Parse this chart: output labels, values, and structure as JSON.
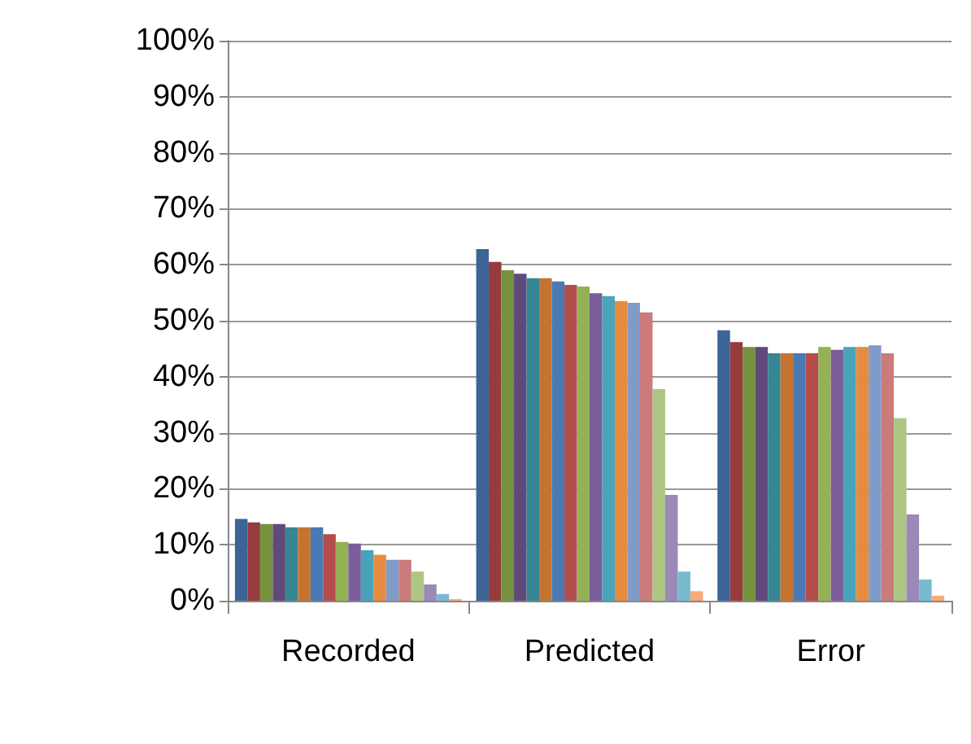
{
  "chart_data": {
    "type": "bar",
    "categories": [
      "Recorded",
      "Predicted",
      "Error"
    ],
    "series": [
      {
        "color": "#3c6496",
        "values": [
          14.6,
          62.8,
          48.3
        ]
      },
      {
        "color": "#963c3c",
        "values": [
          14.0,
          60.5,
          46.2
        ]
      },
      {
        "color": "#76923c",
        "values": [
          13.7,
          59.0,
          45.3
        ]
      },
      {
        "color": "#604a7b",
        "values": [
          13.7,
          58.4,
          45.3
        ]
      },
      {
        "color": "#378696",
        "values": [
          13.1,
          57.6,
          44.2
        ]
      },
      {
        "color": "#c47430",
        "values": [
          13.1,
          57.6,
          44.2
        ]
      },
      {
        "color": "#4a7ab4",
        "values": [
          13.1,
          57.0,
          44.2
        ]
      },
      {
        "color": "#b44c4c",
        "values": [
          11.9,
          56.4,
          44.2
        ]
      },
      {
        "color": "#94b156",
        "values": [
          10.5,
          56.1,
          45.3
        ]
      },
      {
        "color": "#7a5d99",
        "values": [
          10.2,
          54.9,
          44.8
        ]
      },
      {
        "color": "#48a3bb",
        "values": [
          9.0,
          54.4,
          45.3
        ]
      },
      {
        "color": "#e78c3f",
        "values": [
          8.2,
          53.5,
          45.3
        ]
      },
      {
        "color": "#7f9cc9",
        "values": [
          7.3,
          53.2,
          45.6
        ]
      },
      {
        "color": "#cc7b7b",
        "values": [
          7.3,
          51.5,
          44.2
        ]
      },
      {
        "color": "#aec684",
        "values": [
          5.2,
          37.8,
          32.6
        ]
      },
      {
        "color": "#9b89b8",
        "values": [
          2.9,
          18.9,
          15.4
        ]
      },
      {
        "color": "#78bbd0",
        "values": [
          1.2,
          5.2,
          3.8
        ]
      },
      {
        "color": "#f9aa78",
        "values": [
          0.3,
          1.7,
          0.9
        ]
      }
    ],
    "ylim": [
      0,
      100
    ],
    "yticks": [
      {
        "value": 0,
        "label": "0%"
      },
      {
        "value": 10,
        "label": "10%"
      },
      {
        "value": 20,
        "label": "20%"
      },
      {
        "value": 30,
        "label": "30%"
      },
      {
        "value": 40,
        "label": "40%"
      },
      {
        "value": 50,
        "label": "50%"
      },
      {
        "value": 60,
        "label": "60%"
      },
      {
        "value": 70,
        "label": "70%"
      },
      {
        "value": 80,
        "label": "80%"
      },
      {
        "value": 90,
        "label": "90%"
      },
      {
        "value": 100,
        "label": "100%"
      }
    ],
    "grid": "y"
  }
}
